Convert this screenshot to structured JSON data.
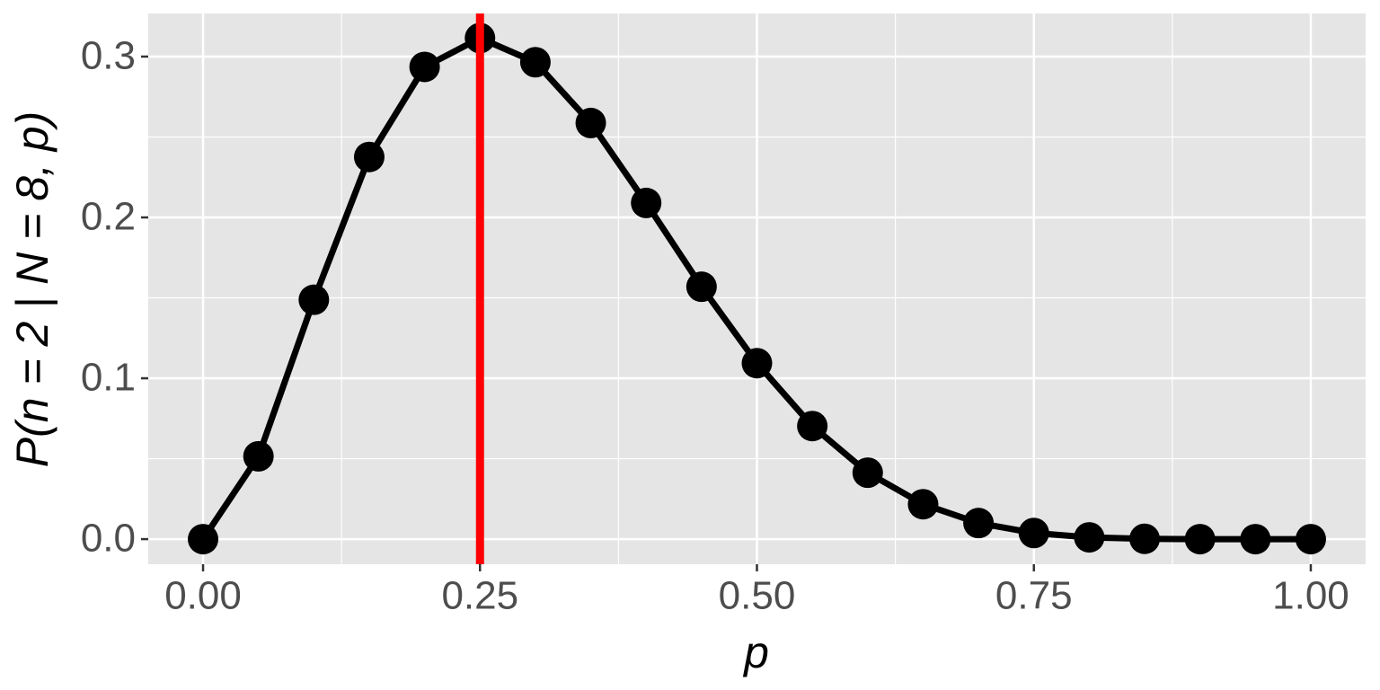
{
  "chart_data": {
    "type": "line",
    "x_label": "p",
    "y_label": "P(n = 2 | N = 8, p)",
    "x": [
      0,
      0.05,
      0.1,
      0.15,
      0.2,
      0.25,
      0.3,
      0.35,
      0.4,
      0.45,
      0.5,
      0.55,
      0.6,
      0.65,
      0.7,
      0.75,
      0.8,
      0.85,
      0.9,
      0.95,
      1
    ],
    "series": [
      {
        "color": "#000000",
        "values": [
          0,
          0.0515,
          0.1488,
          0.2376,
          0.2936,
          0.3115,
          0.2965,
          0.2587,
          0.209,
          0.1569,
          0.1094,
          0.0703,
          0.0413,
          0.0217,
          0.01,
          0.0038,
          0.0011,
          0.0002,
          0,
          0,
          0
        ]
      }
    ],
    "vline": {
      "value": 0.25,
      "color": "#ff0000"
    },
    "xlim": [
      -0.0495,
      1.0495
    ],
    "ylim": [
      -0.0156,
      0.3268
    ],
    "xticks": [
      {
        "value": 0,
        "label": "0.00"
      },
      0.25,
      {
        "value": 0.5,
        "label": "0.50"
      },
      0.75,
      {
        "value": 1,
        "label": "1.00"
      }
    ],
    "yticks": [
      {
        "value": 0,
        "label": "0.0"
      },
      0.1,
      0.2,
      0.3
    ],
    "grid": true
  }
}
